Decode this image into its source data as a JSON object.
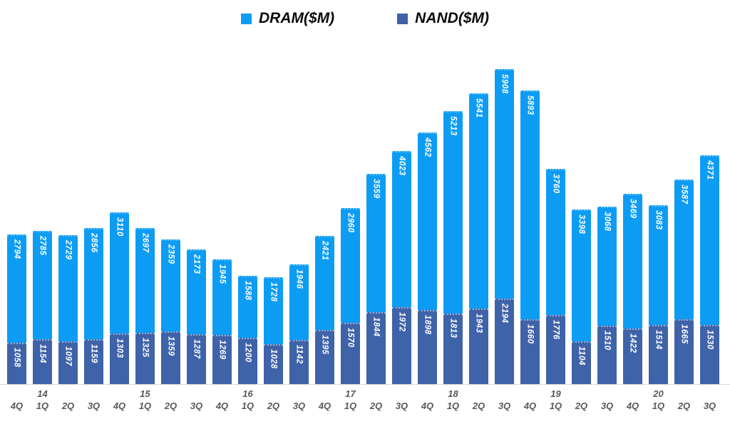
{
  "chart_data": {
    "type": "bar",
    "stacked": true,
    "title": "",
    "legend_position": "top",
    "grid": false,
    "value_labels": "inside-end, rotated 90deg clockwise, white bold italic",
    "value_label_color": "#FFFFFF",
    "axis_label_color": "#595959",
    "baseline_color": "#D9D9D9",
    "legend_text_color": "#0B0B0B",
    "max_stacked_total": 8102,
    "series": [
      {
        "name": "DRAM($M)",
        "color": "#0D9CF4",
        "values": [
          2794,
          2785,
          2729,
          2856,
          3110,
          2697,
          2359,
          2173,
          1945,
          1588,
          1728,
          1946,
          2421,
          2960,
          3559,
          4023,
          4562,
          5213,
          5541,
          5908,
          5893,
          3760,
          3398,
          3068,
          3469,
          3083,
          3587,
          4371
        ]
      },
      {
        "name": "NAND($M)",
        "color": "#3F63A9",
        "values": [
          1058,
          1154,
          1097,
          1159,
          1303,
          1325,
          1359,
          1287,
          1269,
          1200,
          1028,
          1142,
          1395,
          1570,
          1844,
          1972,
          1898,
          1813,
          1943,
          2194,
          1660,
          1776,
          1104,
          1510,
          1422,
          1514,
          1665,
          1530
        ]
      }
    ],
    "categories": [
      {
        "quarter": "4Q",
        "year": ""
      },
      {
        "quarter": "1Q",
        "year": "14"
      },
      {
        "quarter": "2Q",
        "year": ""
      },
      {
        "quarter": "3Q",
        "year": ""
      },
      {
        "quarter": "4Q",
        "year": ""
      },
      {
        "quarter": "1Q",
        "year": "15"
      },
      {
        "quarter": "2Q",
        "year": ""
      },
      {
        "quarter": "3Q",
        "year": ""
      },
      {
        "quarter": "4Q",
        "year": ""
      },
      {
        "quarter": "1Q",
        "year": "16"
      },
      {
        "quarter": "2Q",
        "year": ""
      },
      {
        "quarter": "3Q",
        "year": ""
      },
      {
        "quarter": "4Q",
        "year": ""
      },
      {
        "quarter": "1Q",
        "year": "17"
      },
      {
        "quarter": "2Q",
        "year": ""
      },
      {
        "quarter": "3Q",
        "year": ""
      },
      {
        "quarter": "4Q",
        "year": ""
      },
      {
        "quarter": "1Q",
        "year": "18"
      },
      {
        "quarter": "2Q",
        "year": ""
      },
      {
        "quarter": "3Q",
        "year": ""
      },
      {
        "quarter": "4Q",
        "year": ""
      },
      {
        "quarter": "1Q",
        "year": "19"
      },
      {
        "quarter": "2Q",
        "year": ""
      },
      {
        "quarter": "3Q",
        "year": ""
      },
      {
        "quarter": "4Q",
        "year": ""
      },
      {
        "quarter": "1Q",
        "year": "20"
      },
      {
        "quarter": "2Q",
        "year": ""
      },
      {
        "quarter": "3Q",
        "year": ""
      }
    ]
  }
}
